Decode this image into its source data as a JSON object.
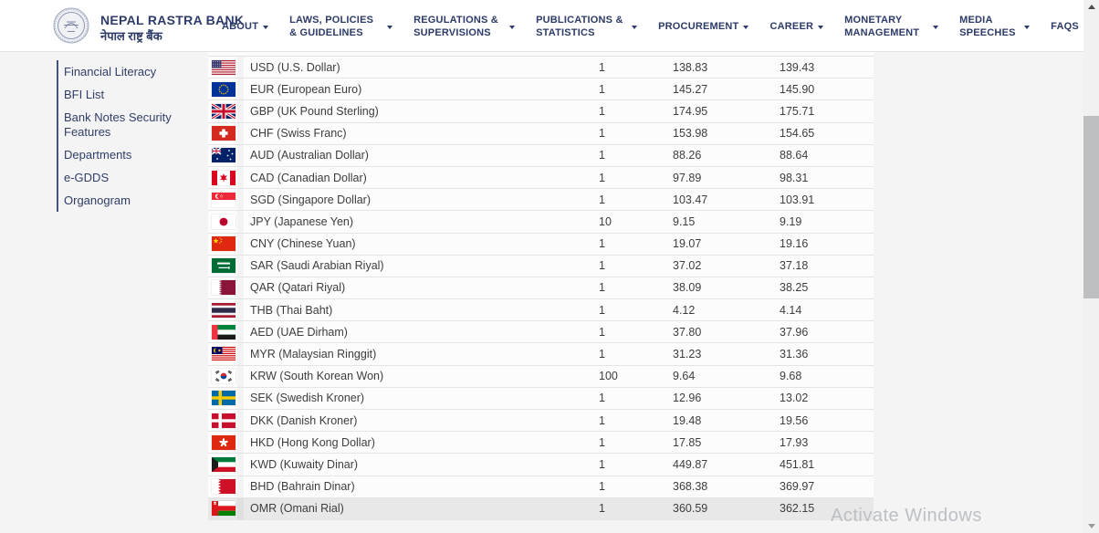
{
  "header": {
    "brand": {
      "name": "NEPAL RASTRA BANK",
      "name_np": "नेपाल राष्ट्र बैंक"
    },
    "nav": [
      {
        "label": "ABOUT",
        "caret": true
      },
      {
        "label": "LAWS, POLICIES & GUIDELINES",
        "caret": true
      },
      {
        "label": "REGULATIONS & SUPERVISIONS",
        "caret": true
      },
      {
        "label": "PUBLICATIONS & STATISTICS",
        "caret": true
      },
      {
        "label": "PROCUREMENT",
        "caret": true
      },
      {
        "label": "CAREER",
        "caret": true
      },
      {
        "label": "MONETARY MANAGEMENT",
        "caret": true
      },
      {
        "label": "MEDIA SPEECHES",
        "caret": true
      },
      {
        "label": "FAQS",
        "caret": false
      }
    ]
  },
  "sidebar": {
    "items": [
      {
        "label": "Financial Literacy"
      },
      {
        "label": "BFI List"
      },
      {
        "label": "Bank Notes Security Features"
      },
      {
        "label": "Departments"
      },
      {
        "label": "e-GDDS"
      },
      {
        "label": "Organogram"
      }
    ]
  },
  "rates_table": {
    "rows": [
      {
        "flag": "us",
        "currency": "USD (U.S. Dollar)",
        "unit": "1",
        "buy": "138.83",
        "sell": "139.43",
        "highlighted": false
      },
      {
        "flag": "eu",
        "currency": "EUR (European Euro)",
        "unit": "1",
        "buy": "145.27",
        "sell": "145.90",
        "highlighted": false
      },
      {
        "flag": "gb",
        "currency": "GBP (UK Pound Sterling)",
        "unit": "1",
        "buy": "174.95",
        "sell": "175.71",
        "highlighted": false
      },
      {
        "flag": "ch",
        "currency": "CHF (Swiss Franc)",
        "unit": "1",
        "buy": "153.98",
        "sell": "154.65",
        "highlighted": false
      },
      {
        "flag": "au",
        "currency": "AUD (Australian Dollar)",
        "unit": "1",
        "buy": "88.26",
        "sell": "88.64",
        "highlighted": false
      },
      {
        "flag": "ca",
        "currency": "CAD (Canadian Dollar)",
        "unit": "1",
        "buy": "97.89",
        "sell": "98.31",
        "highlighted": false
      },
      {
        "flag": "sg",
        "currency": "SGD (Singapore Dollar)",
        "unit": "1",
        "buy": "103.47",
        "sell": "103.91",
        "highlighted": false
      },
      {
        "flag": "jp",
        "currency": "JPY (Japanese Yen)",
        "unit": "10",
        "buy": "9.15",
        "sell": "9.19",
        "highlighted": false
      },
      {
        "flag": "cn",
        "currency": "CNY (Chinese Yuan)",
        "unit": "1",
        "buy": "19.07",
        "sell": "19.16",
        "highlighted": false
      },
      {
        "flag": "sa",
        "currency": "SAR (Saudi Arabian Riyal)",
        "unit": "1",
        "buy": "37.02",
        "sell": "37.18",
        "highlighted": false
      },
      {
        "flag": "qa",
        "currency": "QAR (Qatari Riyal)",
        "unit": "1",
        "buy": "38.09",
        "sell": "38.25",
        "highlighted": false
      },
      {
        "flag": "th",
        "currency": "THB (Thai Baht)",
        "unit": "1",
        "buy": "4.12",
        "sell": "4.14",
        "highlighted": false
      },
      {
        "flag": "ae",
        "currency": "AED (UAE Dirham)",
        "unit": "1",
        "buy": "37.80",
        "sell": "37.96",
        "highlighted": false
      },
      {
        "flag": "my",
        "currency": "MYR (Malaysian Ringgit)",
        "unit": "1",
        "buy": "31.23",
        "sell": "31.36",
        "highlighted": false
      },
      {
        "flag": "kr",
        "currency": "KRW (South Korean Won)",
        "unit": "100",
        "buy": "9.64",
        "sell": "9.68",
        "highlighted": false
      },
      {
        "flag": "se",
        "currency": "SEK (Swedish Kroner)",
        "unit": "1",
        "buy": "12.96",
        "sell": "13.02",
        "highlighted": false
      },
      {
        "flag": "dk",
        "currency": "DKK (Danish Kroner)",
        "unit": "1",
        "buy": "19.48",
        "sell": "19.56",
        "highlighted": false
      },
      {
        "flag": "hk",
        "currency": "HKD (Hong Kong Dollar)",
        "unit": "1",
        "buy": "17.85",
        "sell": "17.93",
        "highlighted": false
      },
      {
        "flag": "kw",
        "currency": "KWD (Kuwaity Dinar)",
        "unit": "1",
        "buy": "449.87",
        "sell": "451.81",
        "highlighted": false
      },
      {
        "flag": "bh",
        "currency": "BHD (Bahrain Dinar)",
        "unit": "1",
        "buy": "368.38",
        "sell": "369.97",
        "highlighted": false
      },
      {
        "flag": "om",
        "currency": "OMR (Omani Rial)",
        "unit": "1",
        "buy": "360.59",
        "sell": "362.15",
        "highlighted": true
      }
    ]
  },
  "watermark": "Activate Windows",
  "colors": {
    "accent_navy": "#2c3b69",
    "page_background": "#f4f4f5",
    "row_background": "#fcfcfc",
    "row_highlight": "#e8e8e8",
    "row_border": "#e4e4e4"
  }
}
